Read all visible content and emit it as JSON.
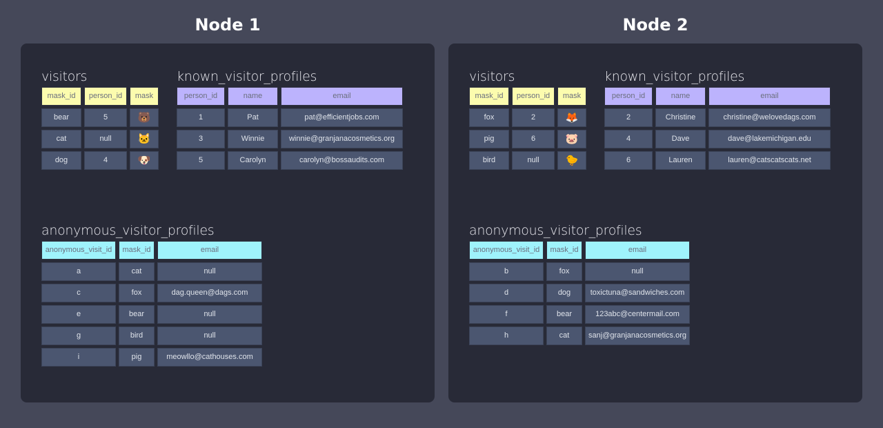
{
  "nodes": [
    {
      "title": "Node 1",
      "visitors": {
        "title": "visitors",
        "columns": [
          "mask_id",
          "person_id",
          "mask"
        ],
        "rows": [
          [
            "bear",
            "5",
            "🐻"
          ],
          [
            "cat",
            "null",
            "🐱"
          ],
          [
            "dog",
            "4",
            "🐶"
          ]
        ]
      },
      "known": {
        "title": "known_visitor_profiles",
        "columns": [
          "person_id",
          "name",
          "email"
        ],
        "rows": [
          [
            "1",
            "Pat",
            "pat@efficientjobs.com"
          ],
          [
            "3",
            "Winnie",
            "winnie@granjanacosmetics.org"
          ],
          [
            "5",
            "Carolyn",
            "carolyn@bossaudits.com"
          ]
        ]
      },
      "anonymous": {
        "title": "anonymous_visitor_profiles",
        "columns": [
          "anonymous_visit_id",
          "mask_id",
          "email"
        ],
        "rows": [
          [
            "a",
            "cat",
            "null"
          ],
          [
            "c",
            "fox",
            "dag.queen@dags.com"
          ],
          [
            "e",
            "bear",
            "null"
          ],
          [
            "g",
            "bird",
            "null"
          ],
          [
            "i",
            "pig",
            "meowllo@cathouses.com"
          ]
        ]
      }
    },
    {
      "title": "Node 2",
      "visitors": {
        "title": "visitors",
        "columns": [
          "mask_id",
          "person_id",
          "mask"
        ],
        "rows": [
          [
            "fox",
            "2",
            "🦊"
          ],
          [
            "pig",
            "6",
            "🐷"
          ],
          [
            "bird",
            "null",
            "🐤"
          ]
        ]
      },
      "known": {
        "title": "known_visitor_profiles",
        "columns": [
          "person_id",
          "name",
          "email"
        ],
        "rows": [
          [
            "2",
            "Christine",
            "christine@welovedags.com"
          ],
          [
            "4",
            "Dave",
            "dave@lakemichigan.edu"
          ],
          [
            "6",
            "Lauren",
            "lauren@catscatscats.net"
          ]
        ]
      },
      "anonymous": {
        "title": "anonymous_visitor_profiles",
        "columns": [
          "anonymous_visit_id",
          "mask_id",
          "email"
        ],
        "rows": [
          [
            "b",
            "fox",
            "null"
          ],
          [
            "d",
            "dog",
            "toxictuna@sandwiches.com"
          ],
          [
            "f",
            "bear",
            "123abc@centermail.com"
          ],
          [
            "h",
            "cat",
            "sanj@granjanacosmetics.org"
          ]
        ]
      }
    }
  ],
  "colors": {
    "background": "#454859",
    "panel": "#282a37",
    "cell": "#4b5670",
    "visitors_header": "#fcfcae",
    "known_header": "#bcb3fd",
    "anonymous_header": "#9ff3fc"
  }
}
